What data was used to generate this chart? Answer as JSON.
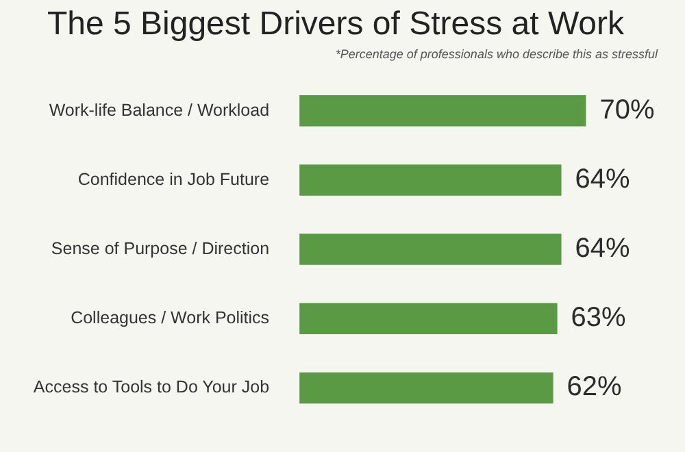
{
  "chart_data": {
    "type": "bar",
    "orientation": "horizontal",
    "title": "The 5 Biggest Drivers of Stress at Work",
    "subtitle": "*Percentage of professionals who describe this as stressful",
    "categories": [
      "Work-life Balance / Workload",
      "Confidence in Job Future",
      "Sense of Purpose / Direction",
      "Colleagues / Work Politics",
      "Access to Tools to Do Your Job"
    ],
    "values": [
      70,
      64,
      64,
      63,
      62
    ],
    "value_labels": [
      "70%",
      "64%",
      "64%",
      "63%",
      "62%"
    ],
    "color": "#5b9a45"
  }
}
